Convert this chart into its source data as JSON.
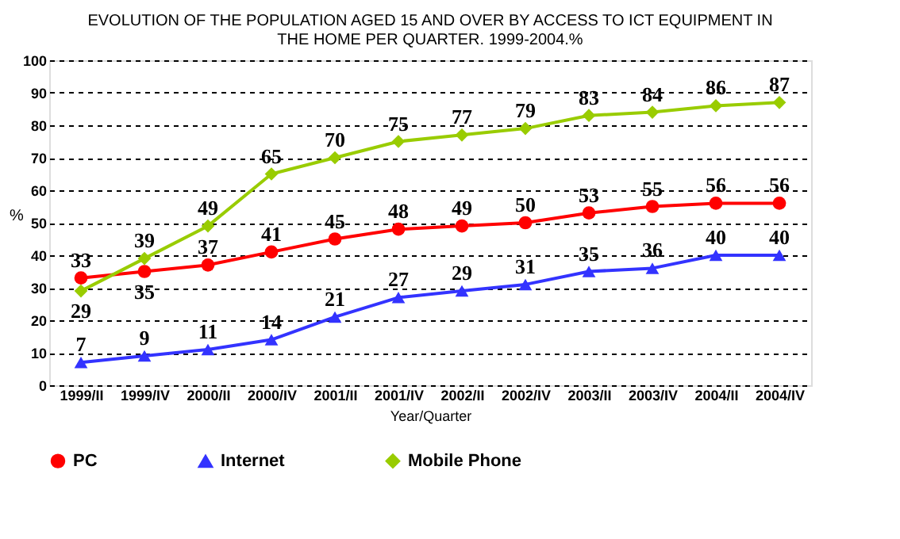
{
  "chart_data": {
    "type": "line",
    "title": [
      "EVOLUTION OF THE POPULATION AGED 15 AND OVER BY ACCESS TO ICT EQUIPMENT IN",
      "THE HOME PER QUARTER. 1999-2004.%"
    ],
    "xlabel": "Year/Quarter",
    "ylabel": "%",
    "categories": [
      "1999/II",
      "1999/IV",
      "2000/II",
      "2000/IV",
      "2001/II",
      "2001/IV",
      "2002/II",
      "2002/IV",
      "2003/II",
      "2003/IV",
      "2004/II",
      "2004/IV"
    ],
    "series": [
      {
        "name": "PC",
        "color": "#ff0000",
        "marker": "circle",
        "values": [
          33,
          35,
          37,
          41,
          45,
          48,
          49,
          50,
          53,
          55,
          56,
          56
        ]
      },
      {
        "name": "Internet",
        "color": "#3333ff",
        "marker": "triangle",
        "values": [
          7,
          9,
          11,
          14,
          21,
          27,
          29,
          31,
          35,
          36,
          40,
          40
        ]
      },
      {
        "name": "Mobile Phone",
        "color": "#99cc00",
        "marker": "diamond",
        "values": [
          29,
          39,
          49,
          65,
          70,
          75,
          77,
          79,
          83,
          84,
          86,
          87
        ]
      }
    ],
    "ylim": [
      0,
      100
    ],
    "yticks": [
      0,
      10,
      20,
      30,
      40,
      50,
      60,
      70,
      80,
      90,
      100
    ],
    "grid": "y",
    "legend": "bottom",
    "data_labels": true,
    "line_style": "solid"
  }
}
